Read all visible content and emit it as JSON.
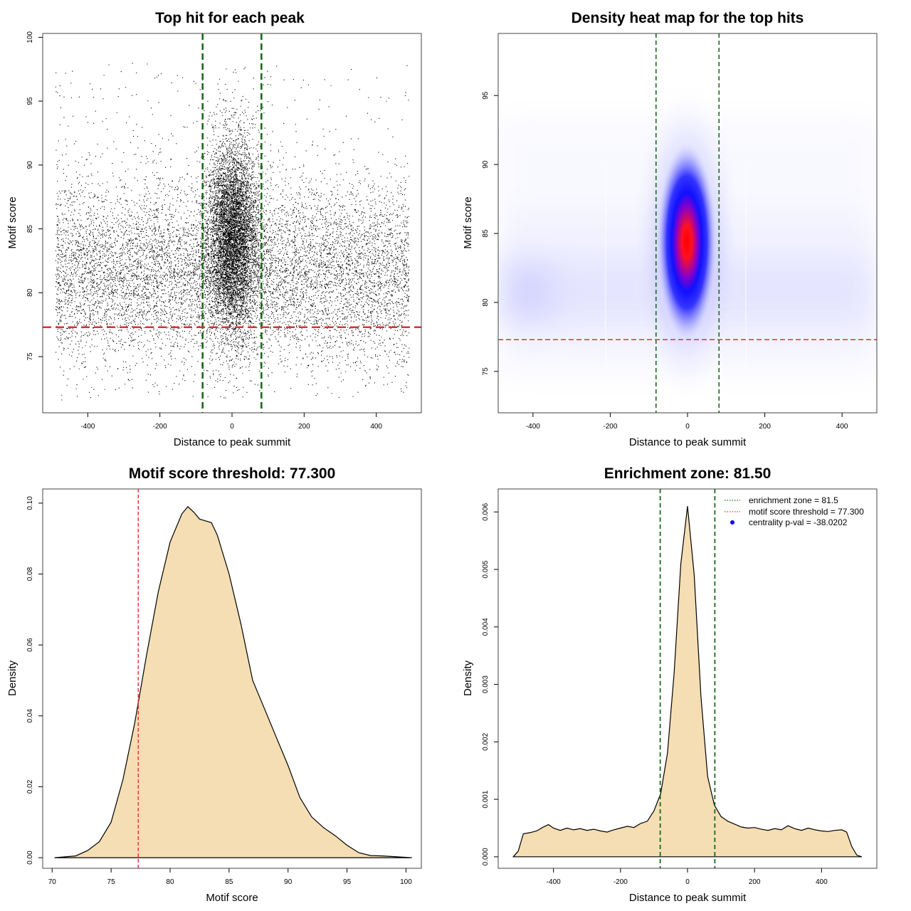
{
  "colors": {
    "zone_line": "#1a6b1a",
    "threshold_line": "#e03030",
    "density_fill": "#f5deb3",
    "heat_low": "#ffffff",
    "heat_mid": "#0000ff",
    "heat_high": "#ff0000",
    "legend_point": "#0000ff"
  },
  "chart_data": [
    {
      "type": "scatter",
      "title": "Top hit for each peak",
      "xlabel": "Distance to peak summit",
      "ylabel": "Motif score",
      "xlim": [
        -525,
        525
      ],
      "ylim": [
        70.6,
        100.3
      ],
      "xticks": [
        -400,
        -200,
        0,
        200,
        400
      ],
      "yticks": [
        75,
        80,
        85,
        90,
        95,
        100
      ],
      "vlines": [
        -81.5,
        81.5
      ],
      "hline": 77.3,
      "points": {
        "approx_count": 16000,
        "background": {
          "x_range": [
            -490,
            490
          ],
          "score_mean": 81.5,
          "score_sd": 3.6
        },
        "central": {
          "x_mean": 0,
          "x_sd": 35,
          "score_mean": 84.5,
          "score_sd": 3.8
        }
      }
    },
    {
      "type": "heatmap",
      "title": "Density heat map for the top hits",
      "xlabel": "Distance to peak summit",
      "ylabel": "Motif score",
      "xlim": [
        -490,
        490
      ],
      "ylim": [
        72,
        99.5
      ],
      "xticks": [
        -400,
        -200,
        0,
        200,
        400
      ],
      "yticks": [
        75,
        80,
        85,
        90,
        95
      ],
      "vlines": [
        -81.5,
        81.5
      ],
      "hline": 77.3,
      "peak": {
        "x": 0,
        "y": 84
      }
    },
    {
      "type": "area",
      "title": "Motif score threshold: 77.300",
      "xlabel": "Motif score",
      "ylabel": "Density",
      "xlim": [
        69.2,
        101.3
      ],
      "ylim": [
        -0.003,
        0.104
      ],
      "xticks": [
        70,
        75,
        80,
        85,
        90,
        95,
        100
      ],
      "yticks": [
        0.0,
        0.02,
        0.04,
        0.06,
        0.08,
        0.1
      ],
      "vline": 77.3,
      "x": [
        70.2,
        72,
        73,
        74,
        75,
        76,
        77,
        78,
        79,
        80,
        81,
        81.5,
        82,
        82.5,
        83,
        83.5,
        84,
        85,
        86,
        87,
        88,
        89,
        90,
        91,
        92,
        93,
        94,
        95,
        96,
        97,
        98,
        99,
        100,
        100.5
      ],
      "y": [
        0.0,
        0.0005,
        0.002,
        0.0045,
        0.01,
        0.022,
        0.038,
        0.057,
        0.075,
        0.089,
        0.097,
        0.099,
        0.0975,
        0.0955,
        0.095,
        0.0945,
        0.091,
        0.08,
        0.066,
        0.05,
        0.042,
        0.034,
        0.026,
        0.017,
        0.0115,
        0.0085,
        0.0062,
        0.0035,
        0.0014,
        0.0006,
        0.0005,
        0.0003,
        0.0001,
        0.0
      ]
    },
    {
      "type": "area",
      "title": "Enrichment zone: 81.50",
      "xlabel": "Distance to peak summit",
      "ylabel": "Density",
      "xlim": [
        -565,
        565
      ],
      "ylim": [
        -0.0002,
        0.0064
      ],
      "xticks": [
        -400,
        -200,
        0,
        200,
        400
      ],
      "yticks": [
        0.0,
        0.001,
        0.002,
        0.003,
        0.004,
        0.005,
        0.006
      ],
      "vlines": [
        -81.5,
        81.5
      ],
      "legend": [
        {
          "label": "enrichment zone = 81.5",
          "style": "dotted",
          "color": "#1a6b1a"
        },
        {
          "label": "motif score threshold = 77.300",
          "style": "dotted",
          "color": "#e03030"
        },
        {
          "label": "centrality p-val = -38.0202",
          "style": "point",
          "color": "#0000ff"
        }
      ],
      "legend_position": "top-right",
      "x": [
        -520,
        -505,
        -490,
        -470,
        -450,
        -430,
        -415,
        -400,
        -380,
        -360,
        -340,
        -320,
        -300,
        -280,
        -260,
        -240,
        -220,
        -200,
        -180,
        -160,
        -140,
        -120,
        -100,
        -80,
        -60,
        -40,
        -20,
        0,
        20,
        40,
        60,
        80,
        100,
        120,
        140,
        160,
        180,
        200,
        220,
        240,
        260,
        280,
        300,
        320,
        340,
        360,
        380,
        400,
        420,
        440,
        460,
        475,
        490,
        505,
        520
      ],
      "y": [
        0.0,
        0.0001,
        0.0004,
        0.00042,
        0.00045,
        0.00052,
        0.00056,
        0.0005,
        0.00046,
        0.0005,
        0.00047,
        0.00049,
        0.00046,
        0.00048,
        0.00045,
        0.00043,
        0.00047,
        0.0005,
        0.00053,
        0.00051,
        0.00058,
        0.00062,
        0.0008,
        0.0011,
        0.0018,
        0.0032,
        0.0051,
        0.0061,
        0.0049,
        0.0028,
        0.0014,
        0.0009,
        0.0007,
        0.00062,
        0.00057,
        0.00052,
        0.0005,
        0.00051,
        0.00048,
        0.00046,
        0.00049,
        0.00047,
        0.00054,
        0.00049,
        0.00046,
        0.0005,
        0.00047,
        0.00045,
        0.00044,
        0.00046,
        0.00047,
        0.00043,
        0.00018,
        3e-05,
        0.0
      ]
    }
  ]
}
